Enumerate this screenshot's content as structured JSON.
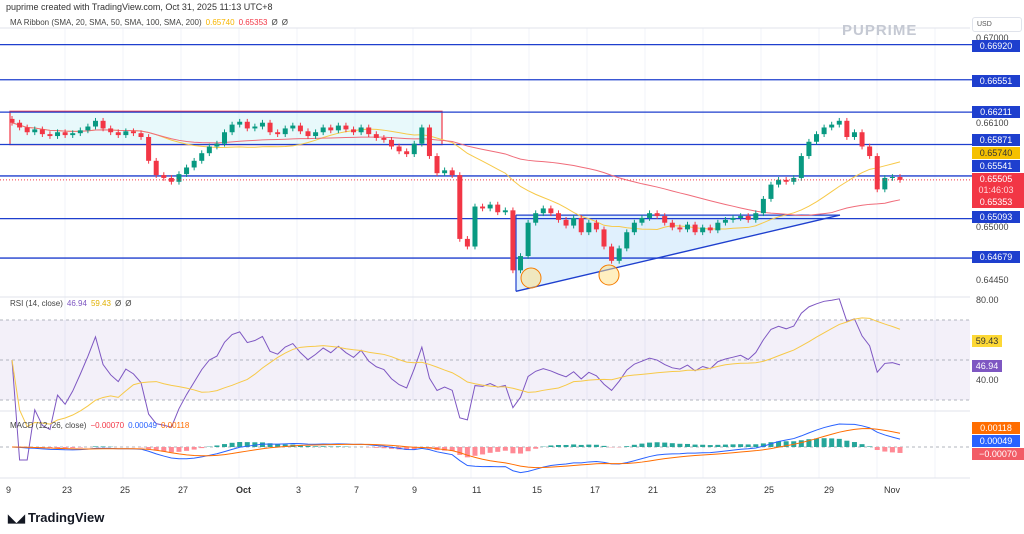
{
  "header": {
    "credit": "puprime created with TradingView.com, Oct 31, 2025 11:13 UTC+8"
  },
  "watermark": "PUPRIME",
  "footer_logo": "TradingView",
  "currency": "USD",
  "colors": {
    "up": "#089981",
    "down": "#f23645",
    "ma20": "#f7c948",
    "ma50": "#f06c7a",
    "level": "#1e3fce",
    "rsi": "#7e57c2",
    "rsi_ma": "#f7c948",
    "macd": "#2962ff",
    "signal": "#ff6d00"
  },
  "chart_data": [
    {
      "type": "candlestick",
      "title": "MA Ribbon (SMA, 20, SMA, 50, SMA, 100, SMA, 200)",
      "legend_values": [
        "0.65740",
        "0.65353",
        "Ø",
        "Ø"
      ],
      "y_ticks": [
        "0.67000",
        "0.66100",
        "0.65000",
        "0.64450"
      ],
      "ylim": [
        0.6425,
        0.6713
      ],
      "x_ticks": [
        "9",
        "23",
        "25",
        "27",
        "Oct",
        "3",
        "7",
        "9",
        "11",
        "15",
        "17",
        "21",
        "23",
        "25",
        "29",
        "Nov"
      ],
      "closes": [
        0.661,
        0.6605,
        0.66,
        0.6603,
        0.6598,
        0.6596,
        0.66,
        0.6597,
        0.6599,
        0.6602,
        0.6606,
        0.6612,
        0.6604,
        0.66,
        0.6597,
        0.6601,
        0.6599,
        0.6595,
        0.657,
        0.6555,
        0.6552,
        0.6548,
        0.6556,
        0.6563,
        0.657,
        0.6578,
        0.6585,
        0.6588,
        0.66,
        0.6608,
        0.6611,
        0.6604,
        0.6606,
        0.661,
        0.66,
        0.6598,
        0.6604,
        0.6607,
        0.6601,
        0.6596,
        0.66,
        0.6605,
        0.6602,
        0.6607,
        0.6603,
        0.66,
        0.6605,
        0.6598,
        0.6594,
        0.6592,
        0.6585,
        0.658,
        0.6577,
        0.6588,
        0.6605,
        0.6575,
        0.6557,
        0.656,
        0.6555,
        0.6488,
        0.648,
        0.6522,
        0.652,
        0.6524,
        0.6516,
        0.6518,
        0.6455,
        0.647,
        0.6505,
        0.6515,
        0.652,
        0.6515,
        0.6508,
        0.6502,
        0.651,
        0.6495,
        0.6505,
        0.6498,
        0.648,
        0.6465,
        0.6478,
        0.6495,
        0.6505,
        0.651,
        0.6515,
        0.6512,
        0.6505,
        0.65,
        0.6498,
        0.6503,
        0.6495,
        0.65,
        0.6497,
        0.6505,
        0.6508,
        0.651,
        0.6512,
        0.6508,
        0.6515,
        0.653,
        0.6545,
        0.655,
        0.6548,
        0.6552,
        0.6575,
        0.659,
        0.6598,
        0.6605,
        0.6608,
        0.6612,
        0.6595,
        0.66,
        0.6585,
        0.6575,
        0.654,
        0.6552,
        0.6553,
        0.655
      ],
      "levels": [
        "0.66920",
        "0.66551",
        "0.66211",
        "0.65871",
        "0.65541",
        "0.65093",
        "0.64679"
      ],
      "price_labels": {
        "ma20": "0.65740",
        "last": "0.65505",
        "countdown": "01:46:03",
        "ma50": "0.65353"
      },
      "range_box": [
        0.6587,
        0.6622
      ],
      "triangle": {
        "top": 0.6513,
        "bottom": 0.6433
      }
    },
    {
      "type": "line",
      "title": "RSI (14, close)",
      "legend_values": [
        "46.94",
        "59.43",
        "Ø",
        "Ø"
      ],
      "y_ticks": [
        "80.00",
        "40.00"
      ],
      "bands": [
        30,
        50,
        70
      ],
      "labels": [
        "59.43",
        "46.94"
      ]
    },
    {
      "type": "histogram",
      "title": "MACD (12, 26, close)",
      "legend_values": [
        "−0.00070",
        "0.00049",
        "0.00118"
      ],
      "labels": [
        "0.00118",
        "0.00049",
        "−0.00070"
      ]
    }
  ]
}
